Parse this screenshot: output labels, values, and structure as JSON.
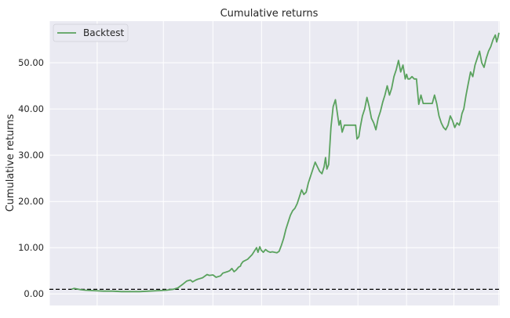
{
  "chart_data": {
    "type": "line",
    "title": "Cumulative returns",
    "xlabel": "",
    "ylabel": "Cumulative returns",
    "ylim": [
      -2.5,
      59.0
    ],
    "xlim": [
      0,
      100
    ],
    "y_ticks": [
      0,
      10,
      20,
      30,
      40,
      50
    ],
    "y_tick_labels": [
      "0.00",
      "10.00",
      "20.00",
      "30.00",
      "40.00",
      "50.00"
    ],
    "x_ticks": [
      0,
      10.6,
      25.3,
      36.3,
      47.1,
      57.8,
      68.5,
      79.3,
      89.8,
      99.8
    ],
    "x_tick_labels": [],
    "grid": true,
    "legend_position": "top-left",
    "reference_line": {
      "y": 1.0,
      "style": "dashed",
      "color": "#000000"
    },
    "colors": {
      "series": "#5aa25e",
      "background": "#eaeaf2",
      "grid": "#ffffff"
    },
    "series": [
      {
        "name": "Backtest",
        "x": [
          4.9,
          5.5,
          6.0,
          7.0,
          8.0,
          10.0,
          12.0,
          14.0,
          16.0,
          18.0,
          20.0,
          22.0,
          24.0,
          26.0,
          27.5,
          28.5,
          29.5,
          30.5,
          31.3,
          31.8,
          32.5,
          33.0,
          34.0,
          35.0,
          35.5,
          36.3,
          37.0,
          38.0,
          38.5,
          39.5,
          40.0,
          40.5,
          41.0,
          41.5,
          42.0,
          42.4,
          42.6,
          43.0,
          44.0,
          45.0,
          46.0,
          46.3,
          46.7,
          47.0,
          47.5,
          48.0,
          48.5,
          49.0,
          49.5,
          50.0,
          50.5,
          51.0,
          51.5,
          52.0,
          52.5,
          53.0,
          53.5,
          54.0,
          54.5,
          55.0,
          55.5,
          56.0,
          56.5,
          57.0,
          57.5,
          58.0,
          58.5,
          59.0,
          59.5,
          60.0,
          60.5,
          61.0,
          61.3,
          61.6,
          62.0,
          62.5,
          63.0,
          63.5,
          64.0,
          64.3,
          64.6,
          65.0,
          65.5,
          66.0,
          66.5,
          67.0,
          67.5,
          68.0,
          68.3,
          68.7,
          69.0,
          69.5,
          70.0,
          70.5,
          71.0,
          71.5,
          72.0,
          72.5,
          73.0,
          73.5,
          74.0,
          74.5,
          75.0,
          75.5,
          76.0,
          76.5,
          77.0,
          77.5,
          78.0,
          78.5,
          79.0,
          79.3,
          79.6,
          80.0,
          80.5,
          81.0,
          81.5,
          82.0,
          82.5,
          83.0,
          83.5,
          84.0,
          84.5,
          85.0,
          85.5,
          86.0,
          86.5,
          87.0,
          87.5,
          88.0,
          88.5,
          89.0,
          89.5,
          90.0,
          90.5,
          91.0,
          91.3,
          91.6,
          92.0,
          92.5,
          93.0,
          93.5,
          94.0,
          94.5,
          95.0,
          95.5,
          96.0,
          96.5,
          97.0,
          97.5,
          98.0,
          98.5,
          99.0,
          99.3,
          99.6,
          99.8
        ],
        "values": [
          1.0,
          1.2,
          1.1,
          0.9,
          0.8,
          0.7,
          0.6,
          0.6,
          0.5,
          0.5,
          0.5,
          0.6,
          0.7,
          0.8,
          1.0,
          1.3,
          2.0,
          2.8,
          3.0,
          2.6,
          3.0,
          3.2,
          3.5,
          4.2,
          4.0,
          4.1,
          3.6,
          3.9,
          4.5,
          4.8,
          5.0,
          5.5,
          4.8,
          5.2,
          5.8,
          6.0,
          6.5,
          7.0,
          7.5,
          8.5,
          10.0,
          9.0,
          10.2,
          9.5,
          9.0,
          9.6,
          9.2,
          9.0,
          9.1,
          9.0,
          8.9,
          9.2,
          10.5,
          12.0,
          14.0,
          15.5,
          17.0,
          18.0,
          18.5,
          19.5,
          21.0,
          22.5,
          21.5,
          22.0,
          24.0,
          25.5,
          27.0,
          28.5,
          27.5,
          26.5,
          26.0,
          27.5,
          29.5,
          27.0,
          28.0,
          36.0,
          40.5,
          42.0,
          38.5,
          36.5,
          37.5,
          35.0,
          36.5,
          36.5,
          36.5,
          36.5,
          36.5,
          36.5,
          33.5,
          34.0,
          36.0,
          38.5,
          40.0,
          42.5,
          40.5,
          38.0,
          37.0,
          35.5,
          38.0,
          39.5,
          41.5,
          43.0,
          45.0,
          43.0,
          44.5,
          47.0,
          48.5,
          50.5,
          48.0,
          49.5,
          46.5,
          47.5,
          46.5,
          46.5,
          47.0,
          46.5,
          46.5,
          41.0,
          43.0,
          41.2,
          41.2,
          41.2,
          41.2,
          41.2,
          43.0,
          41.2,
          38.5,
          37.0,
          36.0,
          35.5,
          36.5,
          38.5,
          37.5,
          36.0,
          37.0,
          36.5,
          37.5,
          39.0,
          40.0,
          43.0,
          45.5,
          48.0,
          47.0,
          49.5,
          51.0,
          52.5,
          50.0,
          49.0,
          51.0,
          52.5,
          53.5,
          55.0,
          56.0,
          54.5,
          55.5,
          56.5
        ]
      }
    ]
  }
}
